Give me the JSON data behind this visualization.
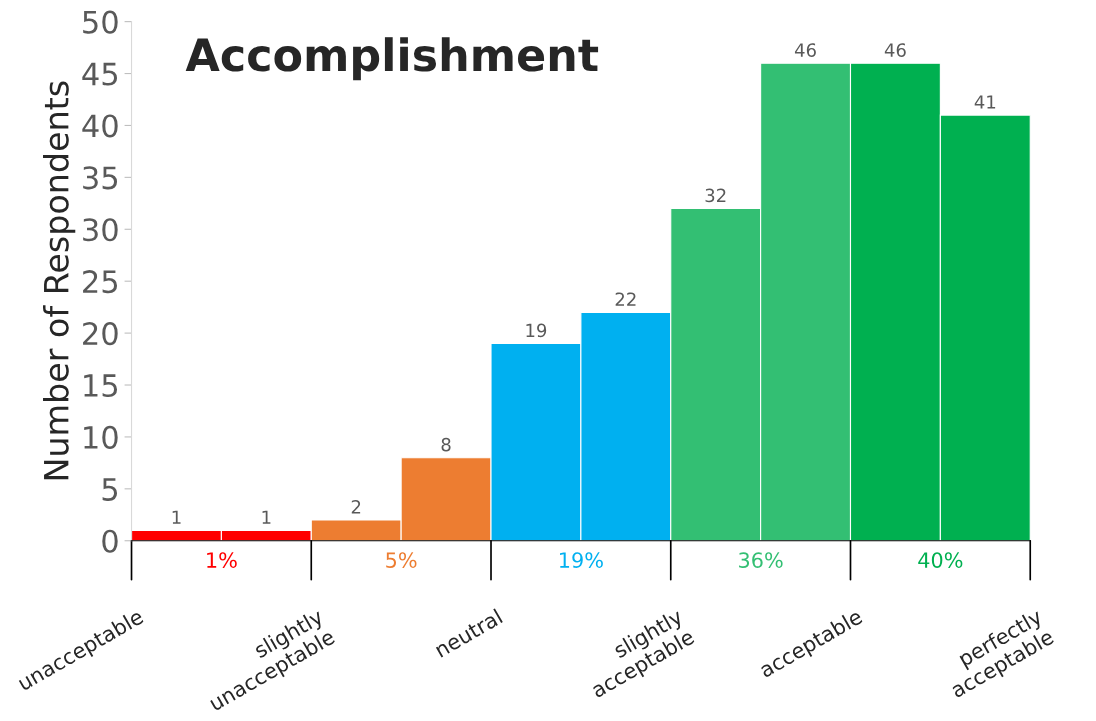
{
  "chart_data": {
    "type": "bar",
    "title": "Accomplishment",
    "ylabel": "Number of Respondents",
    "categories": [
      null,
      null,
      null,
      null,
      null,
      null,
      null,
      null,
      null,
      null
    ],
    "values": [
      1,
      1,
      2,
      8,
      19,
      22,
      32,
      46,
      46,
      41
    ],
    "colors": [
      "#ff0000",
      "#ff0000",
      "#ed7d31",
      "#ed7d31",
      "#00b0f0",
      "#00b0f0",
      "#33bf73",
      "#33bf73",
      "#00b050",
      "#00b050"
    ],
    "ylim": [
      0,
      50
    ],
    "yticks": [
      0,
      5,
      10,
      15,
      20,
      25,
      30,
      35,
      40,
      45,
      50
    ],
    "data_labels": true,
    "grid": false,
    "annotations": [
      "unacceptable",
      "slightly\nunacceptable",
      "neutral",
      "slightly\nacceptable",
      "acceptable",
      "perfectly\nacceptable",
      "1%",
      "5%",
      "19%",
      "36%",
      "40%"
    ]
  }
}
